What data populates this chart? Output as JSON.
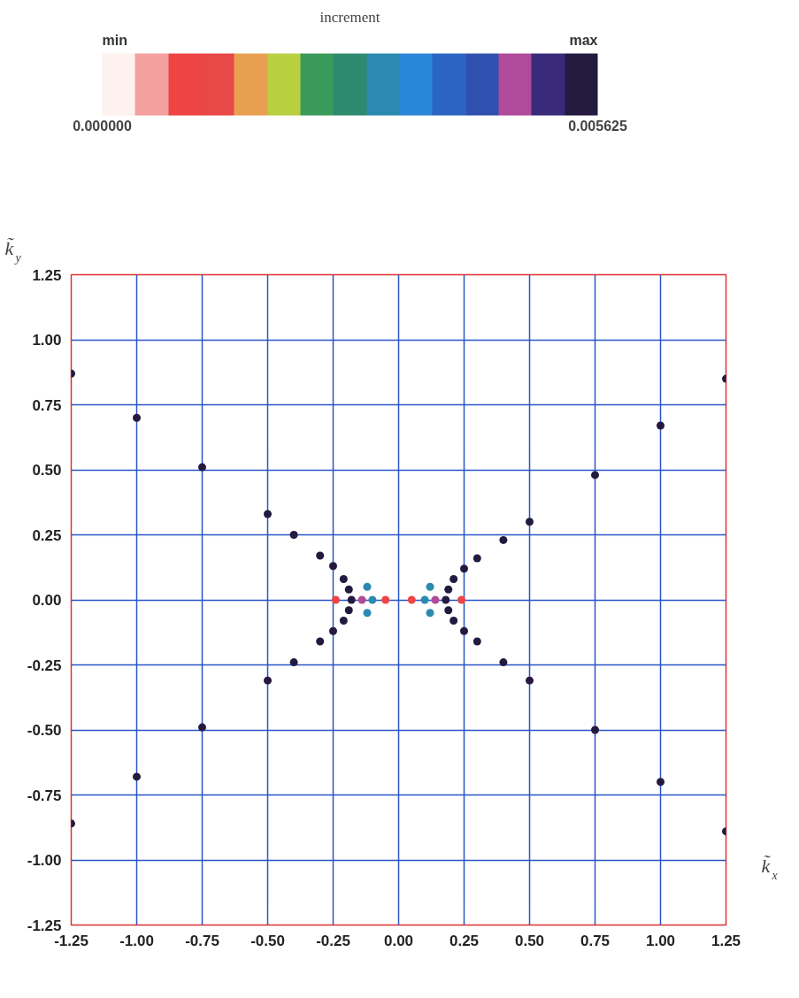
{
  "chart_data": {
    "type": "scatter",
    "xlabel": "k̃$_{x}$",
    "ylabel": "k̃$_{y}$",
    "clabel": "increment",
    "annotations": [
      "min",
      "max"
    ],
    "clim": [
      0,
      0.005625
    ],
    "cticks": [
      {
        "value": 0,
        "label": "0.000000"
      },
      {
        "value": 0.005625,
        "label": "0.005625"
      }
    ],
    "xlim": [
      -1.25,
      1.25
    ],
    "ylim": [
      -1.25,
      1.25
    ],
    "xticks": [
      {
        "value": -1.25,
        "label": "-1.25"
      },
      {
        "value": -1.0,
        "label": "-1.00"
      },
      {
        "value": -0.75,
        "label": "-0.75"
      },
      {
        "value": -0.5,
        "label": "-0.50"
      },
      {
        "value": -0.25,
        "label": "-0.25"
      },
      {
        "value": 0,
        "label": "0.00"
      },
      {
        "value": 0.25,
        "label": "0.25"
      },
      {
        "value": 0.5,
        "label": "0.50"
      },
      {
        "value": 0.75,
        "label": "0.75"
      },
      {
        "value": 1.0,
        "label": "1.00"
      },
      {
        "value": 1.25,
        "label": "1.25"
      }
    ],
    "yticks": [
      {
        "value": -1.25,
        "label": "-1.25"
      },
      {
        "value": -1.0,
        "label": "-1.00"
      },
      {
        "value": -0.75,
        "label": "-0.75"
      },
      {
        "value": -0.5,
        "label": "-0.50"
      },
      {
        "value": -0.25,
        "label": "-0.25"
      },
      {
        "value": 0,
        "label": "0.00"
      },
      {
        "value": 0.25,
        "label": "0.25"
      },
      {
        "value": 0.5,
        "label": "0.50"
      },
      {
        "value": 0.75,
        "label": "0.75"
      },
      {
        "value": 1.0,
        "label": "1.00"
      },
      {
        "value": 1.25,
        "label": "1.25"
      }
    ],
    "grid": true,
    "marker": "circle",
    "x": [
      0.18,
      0.19,
      0.21,
      0.25,
      0.3,
      0.4,
      0.5,
      0.75,
      1.0,
      1.25,
      0.19,
      0.21,
      0.25,
      0.3,
      0.4,
      0.5,
      0.75,
      1.0,
      1.25,
      -0.18,
      -0.19,
      -0.21,
      -0.25,
      -0.3,
      -0.4,
      -0.5,
      -0.75,
      -1.0,
      -1.25,
      -0.19,
      -0.21,
      -0.25,
      -0.3,
      -0.4,
      -0.5,
      -0.75,
      -1.0,
      -1.25,
      0.14,
      0.1,
      0.05,
      0.12,
      0.12,
      -0.14,
      -0.1,
      -0.05,
      -0.12,
      -0.12,
      0.24,
      -0.24
    ],
    "values": [
      0,
      0.04,
      0.08,
      0.12,
      0.16,
      0.23,
      0.3,
      0.48,
      0.67,
      0.85,
      -0.04,
      -0.08,
      -0.12,
      -0.16,
      -0.24,
      -0.31,
      -0.5,
      -0.7,
      -0.89,
      0,
      0.04,
      0.08,
      0.13,
      0.17,
      0.25,
      0.33,
      0.51,
      0.7,
      0.87,
      -0.04,
      -0.08,
      -0.12,
      -0.16,
      -0.24,
      -0.31,
      -0.49,
      -0.68,
      -0.86,
      0,
      0,
      0,
      0.05,
      -0.05,
      0,
      0,
      0,
      0.05,
      -0.05,
      0,
      0
    ],
    "cvalues": [
      0.0055,
      0.0055,
      0.0055,
      0.0055,
      0.0055,
      0.0055,
      0.0055,
      0.0055,
      0.0055,
      0.0055,
      0.0055,
      0.0055,
      0.0055,
      0.0055,
      0.0055,
      0.0055,
      0.0055,
      0.0055,
      0.0055,
      0.0055,
      0.0055,
      0.0055,
      0.0055,
      0.0055,
      0.0055,
      0.0055,
      0.0055,
      0.0055,
      0.0055,
      0.0055,
      0.0055,
      0.0055,
      0.0055,
      0.0055,
      0.0055,
      0.0055,
      0.0055,
      0.0055,
      0.0045,
      0.003,
      0.0008,
      0.003,
      0.003,
      0.0045,
      0.003,
      0.0008,
      0.003,
      0.003,
      0.0008,
      0.0008
    ]
  }
}
